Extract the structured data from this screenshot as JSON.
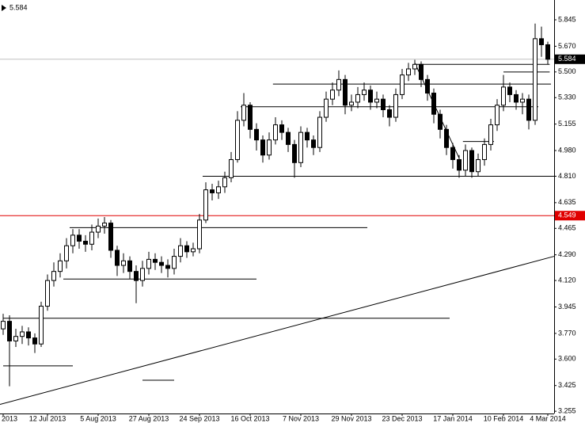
{
  "chart_data": {
    "type": "candlestick",
    "categories": [
      "2013",
      null,
      null,
      null,
      null,
      null,
      null,
      "12 Jul 2013",
      null,
      null,
      null,
      null,
      null,
      null,
      null,
      "5 Aug 2013",
      null,
      null,
      null,
      null,
      null,
      null,
      null,
      "27 Aug 2013",
      null,
      null,
      null,
      null,
      null,
      null,
      null,
      "24 Sep 2013",
      null,
      null,
      null,
      null,
      null,
      null,
      null,
      "16 Oct 2013",
      null,
      null,
      null,
      null,
      null,
      null,
      null,
      "7 Nov 2013",
      null,
      null,
      null,
      null,
      null,
      null,
      null,
      "29 Nov 2013",
      null,
      null,
      null,
      null,
      null,
      null,
      null,
      "23 Dec 2013",
      null,
      null,
      null,
      null,
      null,
      null,
      null,
      "17 Jan 2014",
      null,
      null,
      null,
      null,
      null,
      null,
      null,
      "10 Feb 2014",
      null,
      null,
      null,
      null,
      null,
      null,
      "4 Mar 2014"
    ],
    "open": [
      3.8,
      3.85,
      3.72,
      3.75,
      3.78,
      3.74,
      3.7,
      3.95,
      4.12,
      4.18,
      4.25,
      4.35,
      4.42,
      4.38,
      4.36,
      4.44,
      4.48,
      4.5,
      4.32,
      4.22,
      4.25,
      4.18,
      4.12,
      4.2,
      4.26,
      4.24,
      4.22,
      4.2,
      4.28,
      4.35,
      4.31,
      4.33,
      4.52,
      4.72,
      4.7,
      4.74,
      4.8,
      4.92,
      5.18,
      5.28,
      5.12,
      5.05,
      4.95,
      5.05,
      5.15,
      5.1,
      5.02,
      4.9,
      5.1,
      5.05,
      5.0,
      5.2,
      5.32,
      5.38,
      5.45,
      5.28,
      5.3,
      5.35,
      5.38,
      5.3,
      5.32,
      5.25,
      5.2,
      5.35,
      5.48,
      5.52,
      5.55,
      5.45,
      5.36,
      5.22,
      5.12,
      5.0,
      4.92,
      4.85,
      4.98,
      4.84,
      4.92,
      5.02,
      5.15,
      5.28,
      5.4,
      5.35,
      5.3,
      5.32,
      5.18,
      5.72,
      5.68
    ],
    "high": [
      3.9,
      3.89,
      3.8,
      3.82,
      3.81,
      3.77,
      3.98,
      4.16,
      4.24,
      4.3,
      4.4,
      4.46,
      4.46,
      4.42,
      4.49,
      4.53,
      4.54,
      4.52,
      4.35,
      4.3,
      4.28,
      4.22,
      4.25,
      4.31,
      4.3,
      4.28,
      4.26,
      4.33,
      4.4,
      4.38,
      4.37,
      4.56,
      4.77,
      4.76,
      4.78,
      4.84,
      4.97,
      5.24,
      5.36,
      5.3,
      5.16,
      5.08,
      5.1,
      5.2,
      5.18,
      5.13,
      5.05,
      5.14,
      5.13,
      5.08,
      5.24,
      5.37,
      5.43,
      5.51,
      5.48,
      5.35,
      5.4,
      5.43,
      5.41,
      5.37,
      5.35,
      5.28,
      5.39,
      5.52,
      5.56,
      5.58,
      5.57,
      5.48,
      5.39,
      5.25,
      5.15,
      5.03,
      4.95,
      5.02,
      5.0,
      4.96,
      5.06,
      5.19,
      5.32,
      5.48,
      5.43,
      5.38,
      5.36,
      5.35,
      5.82,
      5.8,
      5.7
    ],
    "low": [
      3.76,
      3.42,
      3.68,
      3.7,
      3.69,
      3.64,
      3.68,
      3.92,
      4.08,
      4.14,
      4.2,
      4.3,
      4.33,
      4.31,
      4.32,
      4.4,
      4.43,
      4.27,
      4.15,
      4.17,
      4.13,
      3.97,
      4.08,
      4.16,
      4.19,
      4.17,
      4.14,
      4.16,
      4.24,
      4.27,
      4.28,
      4.3,
      4.5,
      4.65,
      4.66,
      4.7,
      4.77,
      4.9,
      5.14,
      5.06,
      4.98,
      4.9,
      4.92,
      5.02,
      5.05,
      4.97,
      4.8,
      4.87,
      5.0,
      4.95,
      4.97,
      5.17,
      5.28,
      5.34,
      5.22,
      5.24,
      5.26,
      5.31,
      5.25,
      5.26,
      5.2,
      5.14,
      5.17,
      5.32,
      5.44,
      5.48,
      5.4,
      5.31,
      5.16,
      5.06,
      4.95,
      4.86,
      4.8,
      4.81,
      4.8,
      4.81,
      4.88,
      4.98,
      5.11,
      5.24,
      5.3,
      5.25,
      5.22,
      5.12,
      5.15,
      5.6,
      5.55
    ],
    "close": [
      3.85,
      3.72,
      3.75,
      3.78,
      3.74,
      3.7,
      3.95,
      4.12,
      4.18,
      4.25,
      4.35,
      4.42,
      4.38,
      4.36,
      4.44,
      4.48,
      4.5,
      4.32,
      4.22,
      4.25,
      4.18,
      4.12,
      4.2,
      4.26,
      4.24,
      4.22,
      4.2,
      4.28,
      4.35,
      4.31,
      4.33,
      4.52,
      4.72,
      4.7,
      4.74,
      4.8,
      4.92,
      5.18,
      5.28,
      5.12,
      5.05,
      4.95,
      5.05,
      5.15,
      5.1,
      5.02,
      4.9,
      5.1,
      5.05,
      5.0,
      5.2,
      5.32,
      5.38,
      5.45,
      5.28,
      5.3,
      5.35,
      5.38,
      5.3,
      5.32,
      5.25,
      5.2,
      5.35,
      5.48,
      5.52,
      5.55,
      5.45,
      5.36,
      5.22,
      5.12,
      5.0,
      4.92,
      4.85,
      4.98,
      4.84,
      4.92,
      5.02,
      5.15,
      5.28,
      5.4,
      5.35,
      5.3,
      5.32,
      5.18,
      5.72,
      5.68,
      5.584
    ],
    "ylim": [
      3.24,
      5.976
    ],
    "yticks": [
      5.845,
      {
        "value": 5.67,
        "label": "5.670"
      },
      {
        "value": 5.5,
        "label": "5.500"
      },
      {
        "value": 5.33,
        "label": "5.330"
      },
      5.155,
      {
        "value": 4.98,
        "label": "4.980"
      },
      {
        "value": 4.81,
        "label": "4.810"
      },
      4.635,
      4.465,
      {
        "value": 4.29,
        "label": "4.290"
      },
      {
        "value": 4.12,
        "label": "4.120"
      },
      3.945,
      {
        "value": 3.77,
        "label": "3.770"
      },
      {
        "value": 3.6,
        "label": "3.600"
      },
      3.425,
      3.255
    ],
    "grid": false,
    "up_color": "#ffffff",
    "down_color": "#000000",
    "red_line": {
      "value": 4.549,
      "color": "#e00000"
    },
    "hlines": [
      {
        "value": 3.555,
        "from": 0,
        "to": 11
      },
      {
        "value": 3.46,
        "from": 22,
        "to": 27
      },
      {
        "value": 3.87,
        "from": 0,
        "to": 70.5
      },
      {
        "value": 4.13,
        "from": 9.5,
        "to": 40
      },
      {
        "value": 4.47,
        "from": 10.5,
        "to": 57.5
      },
      {
        "value": 4.81,
        "from": 31.5,
        "to": 87
      },
      {
        "value": 5.27,
        "from": 37.5,
        "to": 84.5
      },
      {
        "value": 5.42,
        "from": 42.6,
        "to": 86.5
      },
      {
        "value": 5.55,
        "from": 65,
        "to": 86.3
      },
      {
        "value": 5.5,
        "from": 79,
        "to": 86.3
      },
      {
        "value": 5.04,
        "from": 72.6,
        "to": 77.5
      }
    ],
    "trendlines": [
      {
        "from": -0.5,
        "from_value": 3.3,
        "to": 87,
        "to_value": 4.28
      },
      {
        "from": 65,
        "from_value": 5.56,
        "to": 72,
        "to_value": 4.93
      }
    ]
  }
}
